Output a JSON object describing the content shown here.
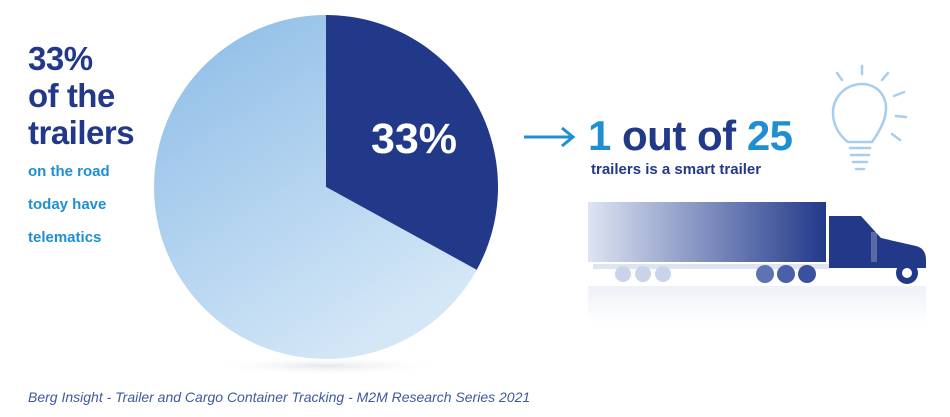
{
  "left": {
    "headline": [
      "33%",
      "of the",
      "trailers"
    ],
    "lines": [
      "on the road",
      "today have",
      "telematics"
    ]
  },
  "chart_data": {
    "type": "pie",
    "slices": [
      {
        "label": "33%",
        "value": 33,
        "color": "#22398a"
      },
      {
        "label": "",
        "value": 67,
        "color": "#a9cdee"
      }
    ]
  },
  "right": {
    "number1": "1",
    "mid": " out of ",
    "number2": "25",
    "subtitle": "trailers is a smart trailer",
    "bulb_icon": "lightbulb-icon",
    "truck_icon": "truck-icon"
  },
  "footer": "Berg Insight - Trailer and Cargo Container Tracking - M2M Research Series 2021"
}
